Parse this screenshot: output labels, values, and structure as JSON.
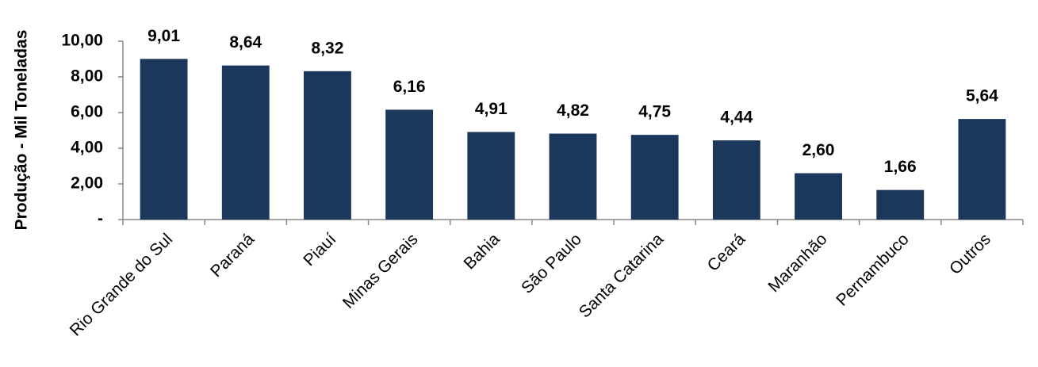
{
  "chart_data": {
    "type": "bar",
    "y_axis_label": "Produção - Mil Toneladas",
    "categories": [
      "Rio Grande do Sul",
      "Paraná",
      "Piauí",
      "Minas Gerais",
      "Bahia",
      "São Paulo",
      "Santa Catarina",
      "Ceará",
      "Maranhão",
      "Pernambuco",
      "Outros"
    ],
    "values": [
      9.01,
      8.64,
      8.32,
      6.16,
      4.91,
      4.82,
      4.75,
      4.44,
      2.6,
      1.66,
      5.64
    ],
    "value_labels": [
      "9,01",
      "8,64",
      "8,32",
      "6,16",
      "4,91",
      "4,82",
      "4,75",
      "4,44",
      "2,60",
      "1,66",
      "5,64"
    ],
    "color": "#1b375c",
    "ylim": [
      0,
      10
    ],
    "yticks": [
      {
        "value": 0,
        "label": "-"
      },
      {
        "value": 2,
        "label": "2,00"
      },
      {
        "value": 4,
        "label": "4,00"
      },
      {
        "value": 6,
        "label": "6,00"
      },
      {
        "value": 8,
        "label": "8,00"
      },
      {
        "value": 10,
        "label": "10,00"
      }
    ],
    "grid": false
  }
}
